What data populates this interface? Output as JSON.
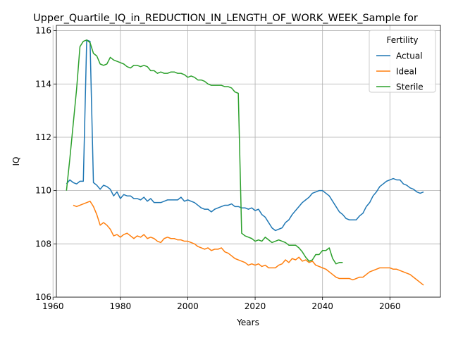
{
  "chart_data": {
    "type": "line",
    "title": "Upper_Quartile_IQ_in_REDUCTION_IN_LENGTH_OF_WORK_WEEK_Sample for",
    "xlabel": "Years",
    "ylabel": "IQ",
    "xlim": [
      1961,
      2075
    ],
    "ylim": [
      106,
      116.2
    ],
    "xticks": [
      1960,
      1980,
      2000,
      2020,
      2040,
      2060
    ],
    "yticks": [
      106,
      108,
      110,
      112,
      114,
      116
    ],
    "grid": true,
    "legend": {
      "title": "Fertility",
      "placement": "top-right"
    },
    "series": [
      {
        "name": "Actual",
        "color": "#1f77b4",
        "points": [
          [
            1964,
            110.25
          ],
          [
            1965,
            110.4
          ],
          [
            1966,
            110.3
          ],
          [
            1967,
            110.25
          ],
          [
            1968,
            110.35
          ],
          [
            1969,
            110.35
          ],
          [
            1970,
            115.65
          ],
          [
            1971,
            115.6
          ],
          [
            1972,
            110.3
          ],
          [
            1973,
            110.2
          ],
          [
            1974,
            110.05
          ],
          [
            1975,
            110.2
          ],
          [
            1976,
            110.15
          ],
          [
            1977,
            110.05
          ],
          [
            1978,
            109.8
          ],
          [
            1979,
            109.95
          ],
          [
            1980,
            109.7
          ],
          [
            1981,
            109.85
          ],
          [
            1982,
            109.8
          ],
          [
            1983,
            109.8
          ],
          [
            1984,
            109.7
          ],
          [
            1985,
            109.7
          ],
          [
            1986,
            109.65
          ],
          [
            1987,
            109.75
          ],
          [
            1988,
            109.6
          ],
          [
            1989,
            109.7
          ],
          [
            1990,
            109.55
          ],
          [
            1991,
            109.55
          ],
          [
            1992,
            109.55
          ],
          [
            1993,
            109.6
          ],
          [
            1994,
            109.65
          ],
          [
            1995,
            109.65
          ],
          [
            1996,
            109.65
          ],
          [
            1997,
            109.65
          ],
          [
            1998,
            109.75
          ],
          [
            1999,
            109.6
          ],
          [
            2000,
            109.65
          ],
          [
            2001,
            109.6
          ],
          [
            2002,
            109.55
          ],
          [
            2003,
            109.45
          ],
          [
            2004,
            109.35
          ],
          [
            2005,
            109.3
          ],
          [
            2006,
            109.3
          ],
          [
            2007,
            109.2
          ],
          [
            2008,
            109.3
          ],
          [
            2009,
            109.35
          ],
          [
            2010,
            109.4
          ],
          [
            2011,
            109.45
          ],
          [
            2012,
            109.45
          ],
          [
            2013,
            109.5
          ],
          [
            2014,
            109.4
          ],
          [
            2015,
            109.4
          ],
          [
            2016,
            109.35
          ],
          [
            2017,
            109.35
          ],
          [
            2018,
            109.3
          ],
          [
            2019,
            109.35
          ],
          [
            2020,
            109.25
          ],
          [
            2021,
            109.3
          ],
          [
            2022,
            109.1
          ],
          [
            2023,
            109.0
          ],
          [
            2024,
            108.8
          ],
          [
            2025,
            108.6
          ],
          [
            2026,
            108.5
          ],
          [
            2027,
            108.55
          ],
          [
            2028,
            108.6
          ],
          [
            2029,
            108.8
          ],
          [
            2030,
            108.9
          ],
          [
            2031,
            109.1
          ],
          [
            2032,
            109.25
          ],
          [
            2033,
            109.4
          ],
          [
            2034,
            109.55
          ],
          [
            2035,
            109.65
          ],
          [
            2036,
            109.75
          ],
          [
            2037,
            109.9
          ],
          [
            2038,
            109.95
          ],
          [
            2039,
            110.0
          ],
          [
            2040,
            110.0
          ],
          [
            2041,
            109.9
          ],
          [
            2042,
            109.8
          ],
          [
            2043,
            109.6
          ],
          [
            2044,
            109.4
          ],
          [
            2045,
            109.2
          ],
          [
            2046,
            109.1
          ],
          [
            2047,
            108.95
          ],
          [
            2048,
            108.9
          ],
          [
            2049,
            108.9
          ],
          [
            2050,
            108.9
          ],
          [
            2051,
            109.05
          ],
          [
            2052,
            109.15
          ],
          [
            2053,
            109.4
          ],
          [
            2054,
            109.55
          ],
          [
            2055,
            109.8
          ],
          [
            2056,
            109.95
          ],
          [
            2057,
            110.15
          ],
          [
            2058,
            110.25
          ],
          [
            2059,
            110.35
          ],
          [
            2060,
            110.4
          ],
          [
            2061,
            110.45
          ],
          [
            2062,
            110.4
          ],
          [
            2063,
            110.4
          ],
          [
            2064,
            110.25
          ],
          [
            2065,
            110.2
          ],
          [
            2066,
            110.1
          ],
          [
            2067,
            110.05
          ],
          [
            2068,
            109.95
          ],
          [
            2069,
            109.9
          ],
          [
            2070,
            109.95
          ]
        ]
      },
      {
        "name": "Ideal",
        "color": "#ff7f0e",
        "points": [
          [
            1966,
            109.45
          ],
          [
            1967,
            109.4
          ],
          [
            1968,
            109.45
          ],
          [
            1969,
            109.5
          ],
          [
            1970,
            109.55
          ],
          [
            1971,
            109.6
          ],
          [
            1972,
            109.4
          ],
          [
            1973,
            109.1
          ],
          [
            1974,
            108.7
          ],
          [
            1975,
            108.8
          ],
          [
            1976,
            108.7
          ],
          [
            1977,
            108.55
          ],
          [
            1978,
            108.3
          ],
          [
            1979,
            108.35
          ],
          [
            1980,
            108.25
          ],
          [
            1981,
            108.35
          ],
          [
            1982,
            108.4
          ],
          [
            1983,
            108.3
          ],
          [
            1984,
            108.2
          ],
          [
            1985,
            108.3
          ],
          [
            1986,
            108.25
          ],
          [
            1987,
            108.35
          ],
          [
            1988,
            108.2
          ],
          [
            1989,
            108.25
          ],
          [
            1990,
            108.2
          ],
          [
            1991,
            108.1
          ],
          [
            1992,
            108.05
          ],
          [
            1993,
            108.2
          ],
          [
            1994,
            108.25
          ],
          [
            1995,
            108.2
          ],
          [
            1996,
            108.2
          ],
          [
            1997,
            108.15
          ],
          [
            1998,
            108.15
          ],
          [
            1999,
            108.1
          ],
          [
            2000,
            108.1
          ],
          [
            2001,
            108.05
          ],
          [
            2002,
            108.0
          ],
          [
            2003,
            107.9
          ],
          [
            2004,
            107.85
          ],
          [
            2005,
            107.8
          ],
          [
            2006,
            107.85
          ],
          [
            2007,
            107.75
          ],
          [
            2008,
            107.8
          ],
          [
            2009,
            107.8
          ],
          [
            2010,
            107.85
          ],
          [
            2011,
            107.7
          ],
          [
            2012,
            107.65
          ],
          [
            2013,
            107.55
          ],
          [
            2014,
            107.45
          ],
          [
            2015,
            107.4
          ],
          [
            2016,
            107.35
          ],
          [
            2017,
            107.3
          ],
          [
            2018,
            107.2
          ],
          [
            2019,
            107.25
          ],
          [
            2020,
            107.2
          ],
          [
            2021,
            107.25
          ],
          [
            2022,
            107.15
          ],
          [
            2023,
            107.2
          ],
          [
            2024,
            107.1
          ],
          [
            2025,
            107.1
          ],
          [
            2026,
            107.1
          ],
          [
            2027,
            107.2
          ],
          [
            2028,
            107.25
          ],
          [
            2029,
            107.4
          ],
          [
            2030,
            107.3
          ],
          [
            2031,
            107.45
          ],
          [
            2032,
            107.4
          ],
          [
            2033,
            107.5
          ],
          [
            2034,
            107.35
          ],
          [
            2035,
            107.4
          ],
          [
            2036,
            107.3
          ],
          [
            2037,
            107.35
          ],
          [
            2038,
            107.2
          ],
          [
            2039,
            107.15
          ],
          [
            2040,
            107.1
          ],
          [
            2041,
            107.05
          ],
          [
            2042,
            106.95
          ],
          [
            2043,
            106.85
          ],
          [
            2044,
            106.75
          ],
          [
            2045,
            106.7
          ],
          [
            2046,
            106.7
          ],
          [
            2047,
            106.7
          ],
          [
            2048,
            106.7
          ],
          [
            2049,
            106.65
          ],
          [
            2050,
            106.7
          ],
          [
            2051,
            106.75
          ],
          [
            2052,
            106.75
          ],
          [
            2053,
            106.85
          ],
          [
            2054,
            106.95
          ],
          [
            2055,
            107.0
          ],
          [
            2056,
            107.05
          ],
          [
            2057,
            107.1
          ],
          [
            2058,
            107.1
          ],
          [
            2059,
            107.1
          ],
          [
            2060,
            107.1
          ],
          [
            2061,
            107.05
          ],
          [
            2062,
            107.05
          ],
          [
            2063,
            107.0
          ],
          [
            2064,
            106.95
          ],
          [
            2065,
            106.9
          ],
          [
            2066,
            106.85
          ],
          [
            2067,
            106.75
          ],
          [
            2068,
            106.65
          ],
          [
            2069,
            106.55
          ],
          [
            2070,
            106.45
          ]
        ]
      },
      {
        "name": "Sterile",
        "color": "#2ca02c",
        "points": [
          [
            1964,
            110.0
          ],
          [
            1965,
            111.2
          ],
          [
            1966,
            112.5
          ],
          [
            1967,
            113.8
          ],
          [
            1968,
            115.4
          ],
          [
            1969,
            115.6
          ],
          [
            1970,
            115.65
          ],
          [
            1971,
            115.55
          ],
          [
            1972,
            115.15
          ],
          [
            1973,
            115.05
          ],
          [
            1974,
            114.75
          ],
          [
            1975,
            114.7
          ],
          [
            1976,
            114.75
          ],
          [
            1977,
            115.0
          ],
          [
            1978,
            114.9
          ],
          [
            1979,
            114.85
          ],
          [
            1980,
            114.8
          ],
          [
            1981,
            114.75
          ],
          [
            1982,
            114.65
          ],
          [
            1983,
            114.6
          ],
          [
            1984,
            114.7
          ],
          [
            1985,
            114.7
          ],
          [
            1986,
            114.65
          ],
          [
            1987,
            114.7
          ],
          [
            1988,
            114.65
          ],
          [
            1989,
            114.5
          ],
          [
            1990,
            114.5
          ],
          [
            1991,
            114.4
          ],
          [
            1992,
            114.45
          ],
          [
            1993,
            114.4
          ],
          [
            1994,
            114.4
          ],
          [
            1995,
            114.45
          ],
          [
            1996,
            114.45
          ],
          [
            1997,
            114.4
          ],
          [
            1998,
            114.4
          ],
          [
            1999,
            114.35
          ],
          [
            2000,
            114.25
          ],
          [
            2001,
            114.3
          ],
          [
            2002,
            114.25
          ],
          [
            2003,
            114.15
          ],
          [
            2004,
            114.15
          ],
          [
            2005,
            114.1
          ],
          [
            2006,
            114.0
          ],
          [
            2007,
            113.95
          ],
          [
            2008,
            113.95
          ],
          [
            2009,
            113.95
          ],
          [
            2010,
            113.95
          ],
          [
            2011,
            113.9
          ],
          [
            2012,
            113.9
          ],
          [
            2013,
            113.85
          ],
          [
            2014,
            113.7
          ],
          [
            2015,
            113.65
          ],
          [
            2016,
            108.4
          ],
          [
            2017,
            108.3
          ],
          [
            2018,
            108.25
          ],
          [
            2019,
            108.2
          ],
          [
            2020,
            108.1
          ],
          [
            2021,
            108.15
          ],
          [
            2022,
            108.1
          ],
          [
            2023,
            108.25
          ],
          [
            2024,
            108.15
          ],
          [
            2025,
            108.05
          ],
          [
            2026,
            108.1
          ],
          [
            2027,
            108.15
          ],
          [
            2028,
            108.1
          ],
          [
            2029,
            108.05
          ],
          [
            2030,
            107.95
          ],
          [
            2031,
            107.95
          ],
          [
            2032,
            107.95
          ],
          [
            2033,
            107.85
          ],
          [
            2034,
            107.7
          ],
          [
            2035,
            107.5
          ],
          [
            2036,
            107.35
          ],
          [
            2037,
            107.4
          ],
          [
            2038,
            107.6
          ],
          [
            2039,
            107.6
          ],
          [
            2040,
            107.75
          ],
          [
            2041,
            107.75
          ],
          [
            2042,
            107.85
          ],
          [
            2043,
            107.45
          ],
          [
            2044,
            107.25
          ],
          [
            2045,
            107.3
          ],
          [
            2046,
            107.3
          ]
        ]
      }
    ]
  }
}
